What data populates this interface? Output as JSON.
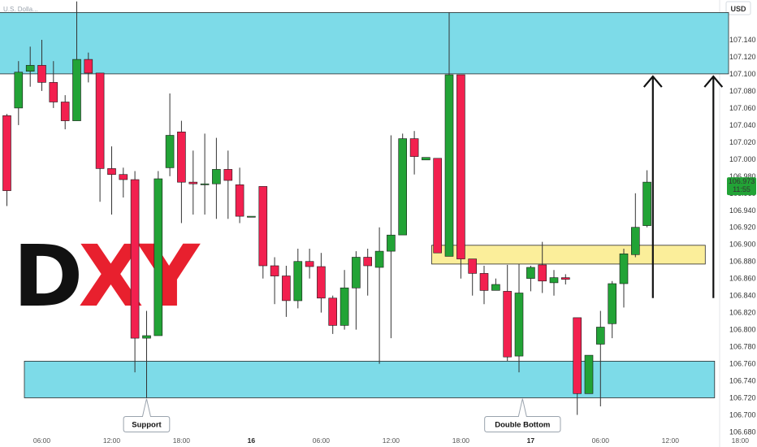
{
  "chart_data": {
    "type": "candlestick",
    "symbol_text": "U.S. Dolla...",
    "currency_label": "USD",
    "watermark": {
      "prefix": "D",
      "suffix": "XY",
      "prefix_color": "#111111",
      "suffix_color": "#e8202e"
    },
    "y_ticks": [
      "107.140",
      "107.120",
      "107.100",
      "107.080",
      "107.060",
      "107.040",
      "107.020",
      "107.000",
      "106.980",
      "106.960",
      "106.940",
      "106.920",
      "106.900",
      "106.880",
      "106.860",
      "106.840",
      "106.820",
      "106.800",
      "106.780",
      "106.760",
      "106.740",
      "106.720",
      "106.700",
      "106.680"
    ],
    "ylim": [
      106.67,
      107.18
    ],
    "x_ticks": [
      {
        "label": "06:00",
        "index": 3,
        "bold": false
      },
      {
        "label": "12:00",
        "index": 9,
        "bold": false
      },
      {
        "label": "18:00",
        "index": 15,
        "bold": false
      },
      {
        "label": "16",
        "index": 21,
        "bold": true
      },
      {
        "label": "06:00",
        "index": 27,
        "bold": false
      },
      {
        "label": "12:00",
        "index": 33,
        "bold": false
      },
      {
        "label": "18:00",
        "index": 39,
        "bold": false
      },
      {
        "label": "17",
        "index": 45,
        "bold": true
      },
      {
        "label": "06:00",
        "index": 51,
        "bold": false
      },
      {
        "label": "12:00",
        "index": 57,
        "bold": false
      },
      {
        "label": "18:00",
        "index": 63,
        "bold": false
      }
    ],
    "last_price": {
      "value": "106.973",
      "countdown": "11:55",
      "price": 106.973,
      "color": "#22a336"
    },
    "colors": {
      "up": "#22a336",
      "down": "#f2204f",
      "zone_blue": "#7ddbe8",
      "zone_yellow": "#fbee9a",
      "wick": "#333333"
    },
    "zones": [
      {
        "name": "resistance",
        "from_index": -1.2,
        "to_index": 62,
        "low": 107.1,
        "high": 107.172,
        "color": "#7ddbe8"
      },
      {
        "name": "support",
        "from_index": 1.5,
        "to_index": 60.8,
        "low": 106.72,
        "high": 106.763,
        "color": "#7ddbe8"
      },
      {
        "name": "pivot",
        "from_index": 36.5,
        "to_index": 60.0,
        "low": 106.877,
        "high": 106.899,
        "color": "#fbee9a"
      }
    ],
    "arrows": [
      {
        "index": 55.5,
        "from": 106.837,
        "to": 107.097
      },
      {
        "index": 60.7,
        "from": 106.837,
        "to": 107.097
      }
    ],
    "callouts": [
      {
        "text": "Support",
        "index": 12,
        "price": 106.72
      },
      {
        "text": "Double Bottom",
        "index": 44.3,
        "price": 106.72
      }
    ],
    "candles": [
      [
        107.051,
        106.963,
        107.053,
        106.945
      ],
      [
        107.06,
        107.102,
        107.115,
        107.04
      ],
      [
        107.103,
        107.11,
        107.132,
        107.085
      ],
      [
        107.11,
        107.09,
        107.14,
        107.08
      ],
      [
        107.09,
        107.067,
        107.115,
        107.06
      ],
      [
        107.067,
        107.045,
        107.075,
        107.035
      ],
      [
        107.045,
        107.117,
        107.185,
        107.045
      ],
      [
        107.117,
        107.101,
        107.125,
        107.09
      ],
      [
        107.101,
        106.989,
        107.101,
        106.95
      ],
      [
        106.989,
        106.982,
        107.015,
        106.935
      ],
      [
        106.982,
        106.976,
        106.99,
        106.955
      ],
      [
        106.976,
        106.79,
        106.986,
        106.75
      ],
      [
        106.79,
        106.793,
        106.822,
        106.72
      ],
      [
        106.793,
        106.977,
        106.986,
        106.793
      ],
      [
        106.99,
        107.028,
        107.077,
        106.98
      ],
      [
        107.032,
        106.973,
        107.045,
        106.925
      ],
      [
        106.973,
        106.971,
        107.01,
        106.935
      ],
      [
        106.971,
        106.971,
        107.03,
        106.935
      ],
      [
        106.971,
        106.988,
        107.025,
        106.93
      ],
      [
        106.988,
        106.975,
        107.01,
        106.93
      ],
      [
        106.97,
        106.933,
        106.99,
        106.925
      ],
      [
        106.933,
        106.933,
        106.933,
        106.933
      ],
      [
        106.968,
        106.875,
        106.968,
        106.86
      ],
      [
        106.875,
        106.863,
        106.885,
        106.83
      ],
      [
        106.863,
        106.834,
        106.875,
        106.815
      ],
      [
        106.834,
        106.88,
        106.895,
        106.825
      ],
      [
        106.88,
        106.874,
        106.895,
        106.86
      ],
      [
        106.874,
        106.837,
        106.89,
        106.82
      ],
      [
        106.837,
        106.805,
        106.84,
        106.795
      ],
      [
        106.805,
        106.849,
        106.87,
        106.8
      ],
      [
        106.849,
        106.885,
        106.892,
        106.8
      ],
      [
        106.885,
        106.875,
        106.895,
        106.84
      ],
      [
        106.873,
        106.892,
        106.92,
        106.76
      ],
      [
        106.892,
        106.911,
        107.028,
        106.79
      ],
      [
        106.911,
        107.024,
        107.03,
        106.97
      ],
      [
        107.024,
        107.003,
        107.033,
        106.982
      ],
      [
        106.999,
        107.002,
        107.002,
        106.999
      ],
      [
        107.001,
        106.89,
        107.001,
        106.89
      ],
      [
        106.886,
        107.099,
        107.172,
        106.886
      ],
      [
        107.099,
        106.883,
        107.099,
        106.86
      ],
      [
        106.883,
        106.866,
        106.88,
        106.84
      ],
      [
        106.866,
        106.846,
        106.875,
        106.83
      ],
      [
        106.846,
        106.853,
        106.86,
        106.85
      ],
      [
        106.845,
        106.768,
        106.876,
        106.763
      ],
      [
        106.769,
        106.843,
        106.877,
        106.75
      ],
      [
        106.86,
        106.873,
        106.875,
        106.845
      ],
      [
        106.876,
        106.857,
        106.903,
        106.843
      ],
      [
        106.855,
        106.861,
        106.87,
        106.84
      ],
      [
        106.861,
        106.859,
        106.865,
        106.853
      ],
      [
        106.814,
        106.725,
        106.814,
        106.7
      ],
      [
        106.725,
        106.77,
        106.77,
        106.725
      ],
      [
        106.783,
        106.803,
        106.822,
        106.71
      ],
      [
        106.807,
        106.854,
        106.857,
        106.79
      ],
      [
        106.854,
        106.889,
        106.895,
        106.826
      ],
      [
        106.888,
        106.92,
        106.96,
        106.885
      ],
      [
        106.922,
        106.973,
        106.987,
        106.92
      ]
    ]
  }
}
